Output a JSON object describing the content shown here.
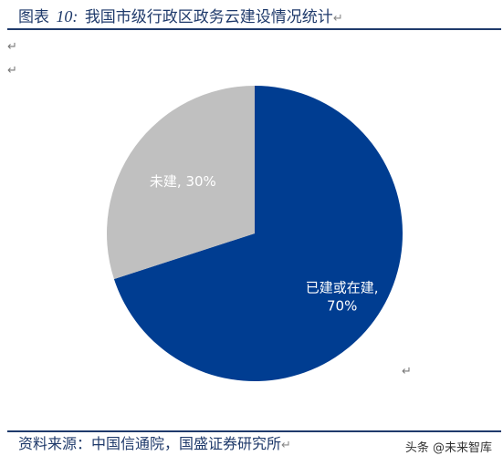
{
  "header": {
    "prefix": "图表",
    "number": "10:",
    "text": "我国市级行政区政务云建设情况统计",
    "return_mark": "↵"
  },
  "paragraph_marks": [
    "↵",
    "↵",
    "↵"
  ],
  "source": {
    "text": "资料来源：中国信通院，国盛证券研究所",
    "return_mark": "↵"
  },
  "watermark": "头条 @未来智库",
  "colors": {
    "built": "#003d91",
    "not_built": "#c0c0c0",
    "text_dark": "#1f3a6b"
  },
  "chart_data": {
    "type": "pie",
    "title": "",
    "labels": [
      "已建或在建",
      "未建"
    ],
    "values": [
      70,
      30
    ],
    "label_texts": [
      [
        "已建或在建,",
        "70%"
      ],
      [
        "未建, 30%"
      ]
    ]
  }
}
